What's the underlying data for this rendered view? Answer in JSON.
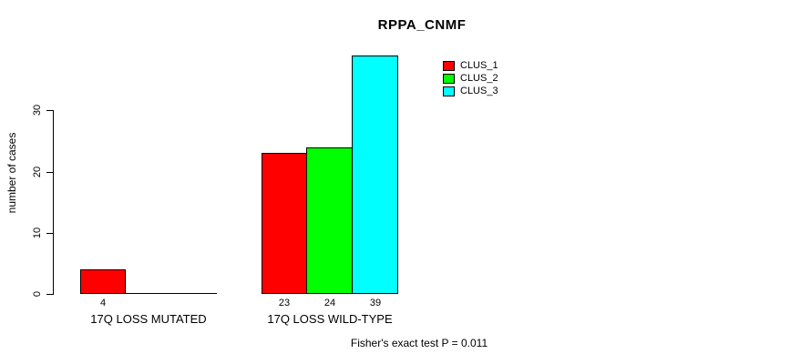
{
  "chart_data": {
    "type": "bar",
    "title": "RPPA_CNMF",
    "ylabel": "number of cases",
    "xlabel": "",
    "footnote": "Fisher's exact test P = 0.011",
    "categories": [
      "17Q LOSS MUTATED",
      "17Q LOSS WILD-TYPE"
    ],
    "series": [
      {
        "name": "CLUS_1",
        "color": "#ff0000",
        "values": [
          4,
          23
        ]
      },
      {
        "name": "CLUS_2",
        "color": "#00ff00",
        "values": [
          0,
          24
        ]
      },
      {
        "name": "CLUS_3",
        "color": "#00ffff",
        "values": [
          0,
          39
        ]
      }
    ],
    "bar_value_labels_shown": [
      "4",
      "23",
      "24",
      "39"
    ],
    "yticks": [
      0,
      10,
      20,
      30
    ],
    "ylim": [
      0,
      39.6
    ],
    "legend_position": "top-right",
    "grid": false,
    "bar_border_color": "#000000",
    "axis_color": "#000000",
    "text_color": "#000000",
    "background": "#ffffff"
  }
}
